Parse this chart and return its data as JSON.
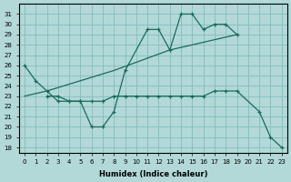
{
  "xlabel": "Humidex (Indice chaleur)",
  "bg_color": "#b2d8d8",
  "line_color": "#1a6b5a",
  "grid_color": "#7ab8b8",
  "xlim": [
    -0.5,
    23.5
  ],
  "ylim": [
    17.5,
    32
  ],
  "xticks": [
    0,
    1,
    2,
    3,
    4,
    5,
    6,
    7,
    8,
    9,
    10,
    11,
    12,
    13,
    14,
    15,
    16,
    17,
    18,
    19,
    20,
    21,
    22,
    23
  ],
  "yticks": [
    18,
    19,
    20,
    21,
    22,
    23,
    24,
    25,
    26,
    27,
    28,
    29,
    30,
    31
  ],
  "line1_x": [
    0,
    1,
    2,
    3,
    4,
    5,
    6,
    7,
    8,
    9,
    11,
    12,
    13,
    14,
    15,
    16,
    17,
    18,
    19
  ],
  "line1_y": [
    26.0,
    24.5,
    23.5,
    22.5,
    22.5,
    22.5,
    20.0,
    20.0,
    21.5,
    25.5,
    29.5,
    29.5,
    27.5,
    31.0,
    31.0,
    29.5,
    30.0,
    30.0,
    29.0
  ],
  "line2_x": [
    0,
    2,
    5,
    8,
    13,
    19
  ],
  "line2_y": [
    23.0,
    23.5,
    24.5,
    25.5,
    27.5,
    29.0
  ],
  "line3_x": [
    2,
    3,
    4,
    5,
    6,
    7,
    8,
    9,
    10,
    11,
    12,
    13,
    14,
    15,
    16,
    17,
    18,
    19,
    21,
    22,
    23
  ],
  "line3_y": [
    23.0,
    23.0,
    22.5,
    22.5,
    22.5,
    22.5,
    23.0,
    23.0,
    23.0,
    23.0,
    23.0,
    23.0,
    23.0,
    23.0,
    23.0,
    23.5,
    23.5,
    23.5,
    21.5,
    19.0,
    18.0
  ]
}
